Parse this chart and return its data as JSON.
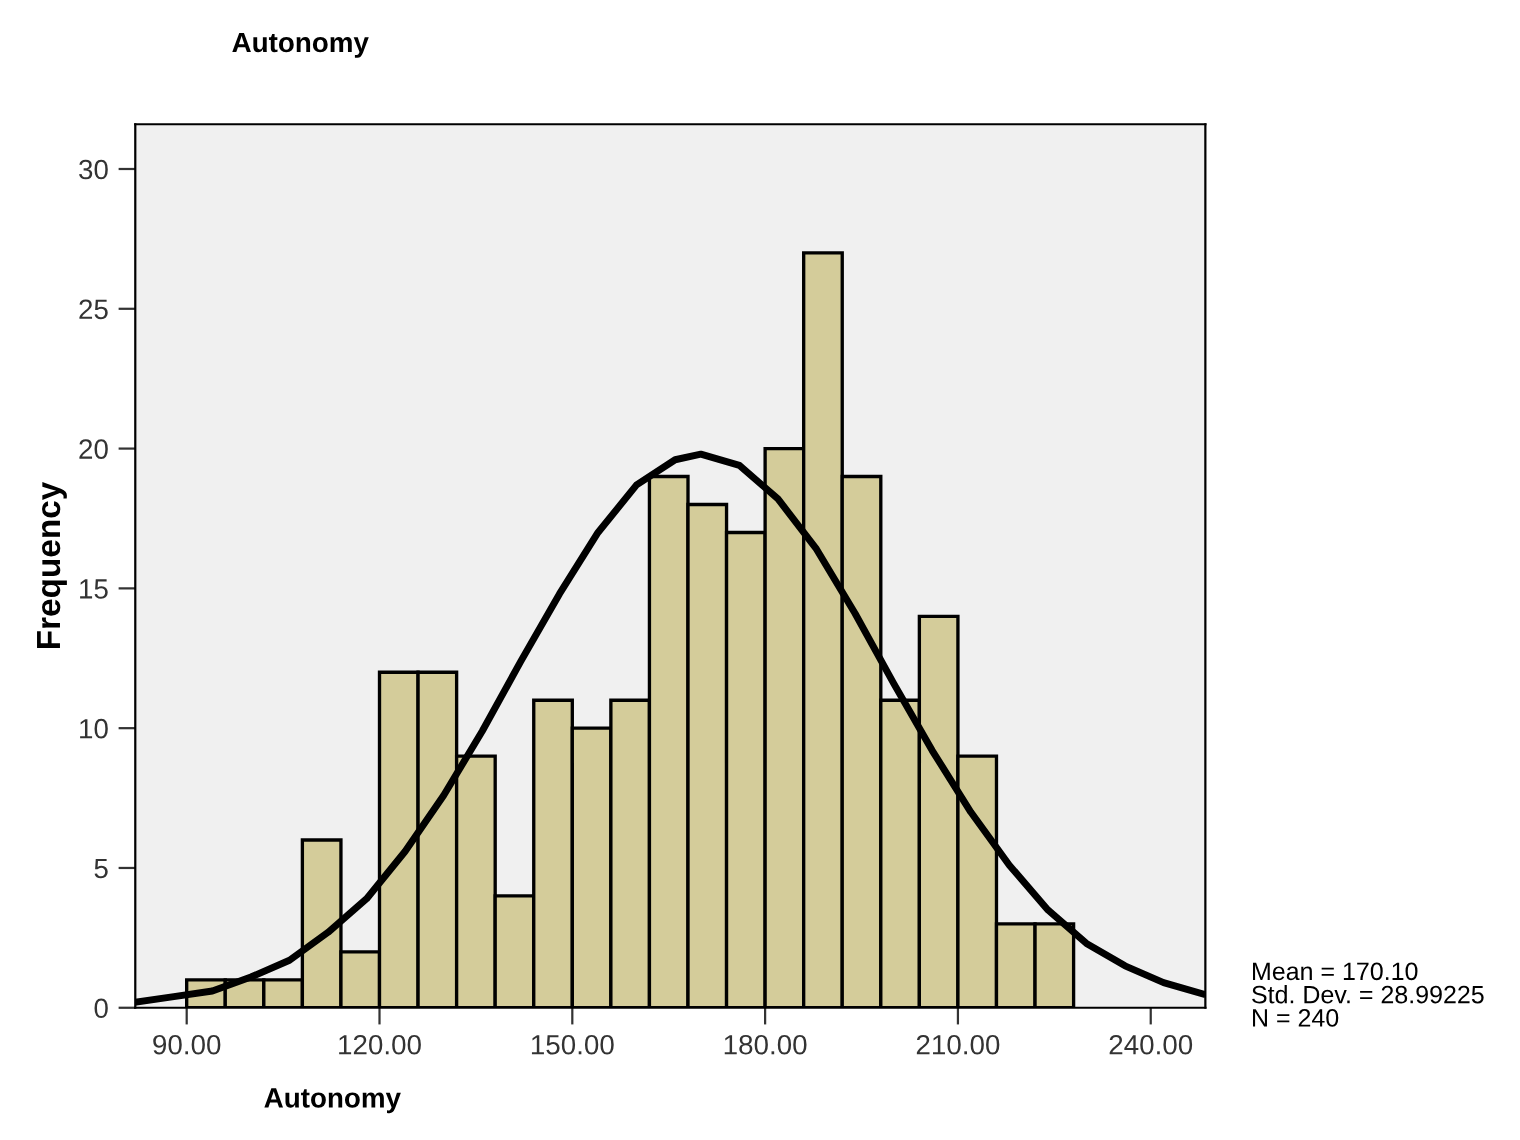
{
  "chart_data": {
    "type": "histogram",
    "title": "Autonomy",
    "xlabel": "Autonomy",
    "ylabel": "Frequency",
    "bins": [
      90,
      96,
      102,
      108,
      114,
      120,
      126,
      132,
      138,
      144,
      150,
      156,
      162,
      168,
      174,
      180,
      186,
      192,
      198,
      204,
      210,
      216,
      222,
      228
    ],
    "values": [
      1,
      1,
      1,
      6,
      2,
      12,
      12,
      9,
      4,
      11,
      10,
      11,
      19,
      18,
      17,
      20,
      27,
      19,
      11,
      14,
      9,
      3,
      3
    ],
    "color": "#d4cc9a",
    "series": [
      {
        "type": "line",
        "color": "#000000",
        "x": [
          82,
          88,
          94,
          100,
          106,
          112,
          118,
          124,
          130,
          136,
          142,
          148,
          154,
          160,
          166,
          170,
          176,
          182,
          188,
          194,
          200,
          206,
          212,
          218,
          224,
          230,
          236,
          242,
          248
        ],
        "values": [
          0.2,
          0.4,
          0.6,
          1.1,
          1.7,
          2.7,
          3.9,
          5.6,
          7.6,
          9.9,
          12.4,
          14.8,
          17.0,
          18.7,
          19.6,
          19.8,
          19.4,
          18.2,
          16.4,
          14.1,
          11.6,
          9.2,
          7.0,
          5.1,
          3.5,
          2.3,
          1.5,
          0.9,
          0.5
        ]
      }
    ],
    "xlim": [
      82,
      248.5
    ],
    "ylim": [
      0,
      31.6
    ],
    "xticks": [
      {
        "value": 90,
        "label": "90.00"
      },
      {
        "value": 120,
        "label": "120.00"
      },
      {
        "value": 150,
        "label": "150.00"
      },
      {
        "value": 180,
        "label": "180.00"
      },
      {
        "value": 210,
        "label": "210.00"
      },
      {
        "value": 240,
        "label": "240.00"
      }
    ],
    "yticks": [
      0,
      5,
      10,
      15,
      20,
      25,
      30
    ],
    "grid": false,
    "annotations": [
      "Mean = 170.10\nStd. Dev. = 28.99225\nN = 240"
    ]
  }
}
